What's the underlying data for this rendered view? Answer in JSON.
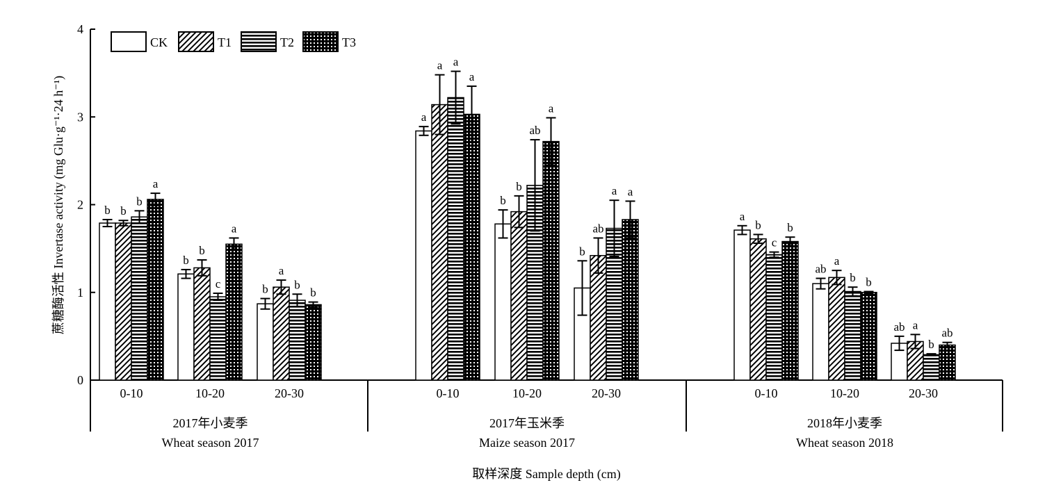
{
  "chart_data": {
    "type": "bar",
    "ylabel": "蔗糖酶活性 Invertase activity (mg Glu·g⁻¹·24 h⁻¹)",
    "xlabel": "取样深度 Sample depth (cm)",
    "ylim": [
      0,
      4
    ],
    "yticks": [
      "0",
      "1",
      "2",
      "3",
      "4"
    ],
    "grid": false,
    "legend_position": "top-left",
    "seasons": [
      {
        "cn": "2017年小麦季",
        "en": "Wheat season 2017"
      },
      {
        "cn": "2017年玉米季",
        "en": "Maize season 2017"
      },
      {
        "cn": "2018年小麦季",
        "en": "Wheat season 2018"
      }
    ],
    "depths": [
      "0-10",
      "10-20",
      "20-30"
    ],
    "series": [
      {
        "name": "CK",
        "pattern": "blank",
        "values": [
          [
            1.79,
            1.21,
            0.87
          ],
          [
            2.84,
            1.78,
            1.05
          ],
          [
            1.71,
            1.1,
            0.42
          ]
        ],
        "errors": [
          [
            0.04,
            0.05,
            0.06
          ],
          [
            0.05,
            0.16,
            0.31
          ],
          [
            0.05,
            0.06,
            0.08
          ]
        ],
        "sig": [
          [
            "b",
            "b",
            "b"
          ],
          [
            "a",
            "b",
            "b"
          ],
          [
            "a",
            "ab",
            "ab"
          ]
        ]
      },
      {
        "name": "T1",
        "pattern": "diagonal",
        "values": [
          [
            1.79,
            1.28,
            1.06
          ],
          [
            3.14,
            1.92,
            1.42
          ],
          [
            1.61,
            1.17,
            0.44
          ]
        ],
        "errors": [
          [
            0.03,
            0.09,
            0.08
          ],
          [
            0.34,
            0.18,
            0.2
          ],
          [
            0.05,
            0.08,
            0.08
          ]
        ],
        "sig": [
          [
            "b",
            "b",
            "a"
          ],
          [
            "a",
            "b",
            "ab"
          ],
          [
            "b",
            "a",
            "a"
          ]
        ]
      },
      {
        "name": "T2",
        "pattern": "horizontal",
        "values": [
          [
            1.86,
            0.95,
            0.91
          ],
          [
            3.22,
            2.22,
            1.73
          ],
          [
            1.43,
            1.01,
            0.29
          ]
        ],
        "errors": [
          [
            0.07,
            0.04,
            0.07
          ],
          [
            0.3,
            0.52,
            0.32
          ],
          [
            0.03,
            0.05,
            0.01
          ]
        ],
        "sig": [
          [
            "b",
            "c",
            "b"
          ],
          [
            "a",
            "ab",
            "a"
          ],
          [
            "c",
            "b",
            "b"
          ]
        ]
      },
      {
        "name": "T3",
        "pattern": "crosshatch",
        "values": [
          [
            2.06,
            1.55,
            0.86
          ],
          [
            3.03,
            2.72,
            1.83
          ],
          [
            1.58,
            1.0,
            0.4
          ]
        ],
        "errors": [
          [
            0.07,
            0.07,
            0.03
          ],
          [
            0.32,
            0.27,
            0.21
          ],
          [
            0.05,
            0.01,
            0.03
          ]
        ],
        "sig": [
          [
            "a",
            "a",
            "b"
          ],
          [
            "a",
            "a",
            "a"
          ],
          [
            "b",
            "b",
            "ab"
          ]
        ]
      }
    ]
  }
}
